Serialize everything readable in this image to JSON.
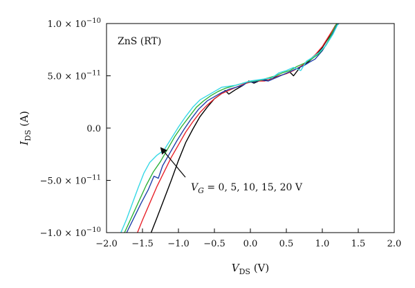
{
  "chart_data": {
    "type": "line",
    "title": "",
    "xlabel_main": "V",
    "xlabel_sub": "DS",
    "xlabel_unit": " (V)",
    "ylabel_main": "I",
    "ylabel_sub": "DS",
    "ylabel_unit": " (A)",
    "xlim": [
      -2.0,
      2.0
    ],
    "ylim": [
      -1e-10,
      1e-10
    ],
    "x_ticks": [
      -2.0,
      -1.5,
      -1.0,
      -0.5,
      0.0,
      0.5,
      1.0,
      1.5,
      2.0
    ],
    "x_tick_labels": [
      "−2.0",
      "−1.5",
      "−1.0",
      "−0.5",
      "0.0",
      "0.5",
      "1.0",
      "1.5",
      "2.0"
    ],
    "y_ticks": [
      -1e-10,
      -5e-11,
      0,
      5e-11,
      1e-10
    ],
    "y_tick_labels": [
      {
        "mantissa": "−1.0 × 10",
        "exp": "−10"
      },
      {
        "mantissa": "−5.0 × 10",
        "exp": "−11"
      },
      {
        "mantissa": "0.0",
        "exp": ""
      },
      {
        "mantissa": "5.0 × 10",
        "exp": "−11"
      },
      {
        "mantissa": "1.0 × 10",
        "exp": "−10"
      }
    ],
    "grid": false,
    "annotation_sample": "ZnS (RT)",
    "annotation_gate": {
      "prefix": "V",
      "sub": "G",
      "text": " = 0, 5, 10, 15, 20 V"
    },
    "series": [
      {
        "color": "#000000",
        "points": [
          [
            -1.38,
            -1e-10
          ],
          [
            -1.3,
            -8.6e-11
          ],
          [
            -1.2,
            -6.8e-11
          ],
          [
            -1.1,
            -5e-11
          ],
          [
            -1.0,
            -3.1e-11
          ],
          [
            -0.9,
            -1.4e-11
          ],
          [
            -0.8,
            -1e-12
          ],
          [
            -0.7,
            1.1e-11
          ],
          [
            -0.6,
            2e-11
          ],
          [
            -0.5,
            2.8e-11
          ],
          [
            -0.42,
            3.2e-11
          ],
          [
            -0.35,
            3.6e-11
          ],
          [
            -0.3,
            3.25e-11
          ],
          [
            -0.2,
            3.7e-11
          ],
          [
            -0.1,
            4.1e-11
          ],
          [
            -0.02,
            4.5e-11
          ],
          [
            0.05,
            4.3e-11
          ],
          [
            0.15,
            4.6e-11
          ],
          [
            0.25,
            4.6e-11
          ],
          [
            0.35,
            4.9e-11
          ],
          [
            0.45,
            5.1e-11
          ],
          [
            0.55,
            5.35e-11
          ],
          [
            0.6,
            5e-11
          ],
          [
            0.7,
            5.9e-11
          ],
          [
            0.8,
            6.3e-11
          ],
          [
            0.9,
            6.9e-11
          ],
          [
            1.0,
            7.7e-11
          ],
          [
            1.1,
            8.8e-11
          ],
          [
            1.18,
            9.8e-11
          ],
          [
            1.22,
            1e-10
          ]
        ]
      },
      {
        "color": "#e8232a",
        "points": [
          [
            -1.57,
            -1e-10
          ],
          [
            -1.5,
            -8.8e-11
          ],
          [
            -1.4,
            -7.2e-11
          ],
          [
            -1.3,
            -5.6e-11
          ],
          [
            -1.2,
            -4.2e-11
          ],
          [
            -1.1,
            -2.8e-11
          ],
          [
            -1.0,
            -1.6e-11
          ],
          [
            -0.9,
            -4e-12
          ],
          [
            -0.8,
            6e-12
          ],
          [
            -0.7,
            1.5e-11
          ],
          [
            -0.6,
            2.2e-11
          ],
          [
            -0.5,
            2.8e-11
          ],
          [
            -0.4,
            3.3e-11
          ],
          [
            -0.3,
            3.6e-11
          ],
          [
            -0.2,
            3.9e-11
          ],
          [
            -0.1,
            4.2e-11
          ],
          [
            0.0,
            4.4e-11
          ],
          [
            0.1,
            4.5e-11
          ],
          [
            0.2,
            4.5e-11
          ],
          [
            0.3,
            4.7e-11
          ],
          [
            0.4,
            5e-11
          ],
          [
            0.5,
            5.2e-11
          ],
          [
            0.6,
            5.5e-11
          ],
          [
            0.7,
            5.9e-11
          ],
          [
            0.8,
            6.4e-11
          ],
          [
            0.9,
            7e-11
          ],
          [
            1.0,
            7.8e-11
          ],
          [
            1.1,
            8.9e-11
          ],
          [
            1.2,
            1e-10
          ]
        ]
      },
      {
        "color": "#1f3fa8",
        "points": [
          [
            -1.72,
            -1e-10
          ],
          [
            -1.62,
            -8.6e-11
          ],
          [
            -1.52,
            -7.2e-11
          ],
          [
            -1.42,
            -5.9e-11
          ],
          [
            -1.34,
            -4.6e-11
          ],
          [
            -1.28,
            -4.8e-11
          ],
          [
            -1.22,
            -3.6e-11
          ],
          [
            -1.12,
            -2.4e-11
          ],
          [
            -1.02,
            -1.2e-11
          ],
          [
            -0.92,
            -1e-12
          ],
          [
            -0.82,
            9e-12
          ],
          [
            -0.72,
            1.8e-11
          ],
          [
            -0.6,
            2.6e-11
          ],
          [
            -0.5,
            3e-11
          ],
          [
            -0.4,
            3.4e-11
          ],
          [
            -0.3,
            3.7e-11
          ],
          [
            -0.2,
            3.9e-11
          ],
          [
            -0.1,
            4.1e-11
          ],
          [
            -0.05,
            4.4e-11
          ],
          [
            0.05,
            4.4e-11
          ],
          [
            0.15,
            4.6e-11
          ],
          [
            0.25,
            4.5e-11
          ],
          [
            0.35,
            4.8e-11
          ],
          [
            0.45,
            5.1e-11
          ],
          [
            0.55,
            5.4e-11
          ],
          [
            0.65,
            5.7e-11
          ],
          [
            0.75,
            6e-11
          ],
          [
            0.82,
            6.3e-11
          ],
          [
            0.9,
            6.6e-11
          ],
          [
            1.0,
            7.4e-11
          ],
          [
            1.1,
            8.5e-11
          ],
          [
            1.2,
            9.8e-11
          ],
          [
            1.23,
            1e-10
          ]
        ]
      },
      {
        "color": "#2fb33a",
        "points": [
          [
            -1.75,
            -1e-10
          ],
          [
            -1.65,
            -8.5e-11
          ],
          [
            -1.55,
            -7e-11
          ],
          [
            -1.45,
            -5.5e-11
          ],
          [
            -1.35,
            -4.2e-11
          ],
          [
            -1.25,
            -3.2e-11
          ],
          [
            -1.15,
            -2e-11
          ],
          [
            -1.05,
            -8e-12
          ],
          [
            -0.95,
            2e-12
          ],
          [
            -0.85,
            1.1e-11
          ],
          [
            -0.75,
            2e-11
          ],
          [
            -0.65,
            2.6e-11
          ],
          [
            -0.55,
            3.1e-11
          ],
          [
            -0.45,
            3.5e-11
          ],
          [
            -0.35,
            3.8e-11
          ],
          [
            -0.25,
            4e-11
          ],
          [
            -0.15,
            4.2e-11
          ],
          [
            -0.05,
            4.4e-11
          ],
          [
            0.05,
            4.5e-11
          ],
          [
            0.15,
            4.6e-11
          ],
          [
            0.25,
            4.8e-11
          ],
          [
            0.35,
            5e-11
          ],
          [
            0.45,
            5.3e-11
          ],
          [
            0.55,
            5.5e-11
          ],
          [
            0.65,
            5.9e-11
          ],
          [
            0.75,
            6.2e-11
          ],
          [
            0.85,
            6.6e-11
          ],
          [
            0.95,
            7.1e-11
          ],
          [
            1.05,
            7.9e-11
          ],
          [
            1.12,
            8.9e-11
          ],
          [
            1.2,
            1e-10
          ]
        ]
      },
      {
        "color": "#35d8e6",
        "points": [
          [
            -1.8,
            -1e-10
          ],
          [
            -1.72,
            -8.7e-11
          ],
          [
            -1.64,
            -7.2e-11
          ],
          [
            -1.56,
            -5.7e-11
          ],
          [
            -1.48,
            -4.3e-11
          ],
          [
            -1.4,
            -3.3e-11
          ],
          [
            -1.3,
            -2.6e-11
          ],
          [
            -1.2,
            -2.1e-11
          ],
          [
            -1.1,
            -1e-11
          ],
          [
            -1.0,
            1e-12
          ],
          [
            -0.9,
            1.1e-11
          ],
          [
            -0.8,
            2e-11
          ],
          [
            -0.7,
            2.7e-11
          ],
          [
            -0.6,
            3.1e-11
          ],
          [
            -0.5,
            3.5e-11
          ],
          [
            -0.4,
            3.9e-11
          ],
          [
            -0.3,
            4e-11
          ],
          [
            -0.2,
            4.1e-11
          ],
          [
            -0.1,
            4.3e-11
          ],
          [
            0.0,
            4.5e-11
          ],
          [
            0.1,
            4.6e-11
          ],
          [
            0.2,
            4.7e-11
          ],
          [
            0.3,
            4.8e-11
          ],
          [
            0.4,
            5.3e-11
          ],
          [
            0.5,
            5.5e-11
          ],
          [
            0.6,
            5.8e-11
          ],
          [
            0.7,
            5.5e-11
          ],
          [
            0.78,
            6.4e-11
          ],
          [
            0.85,
            6.7e-11
          ],
          [
            0.95,
            7.2e-11
          ],
          [
            1.05,
            7.9e-11
          ],
          [
            1.15,
            9e-11
          ],
          [
            1.22,
            1e-10
          ]
        ]
      }
    ]
  }
}
